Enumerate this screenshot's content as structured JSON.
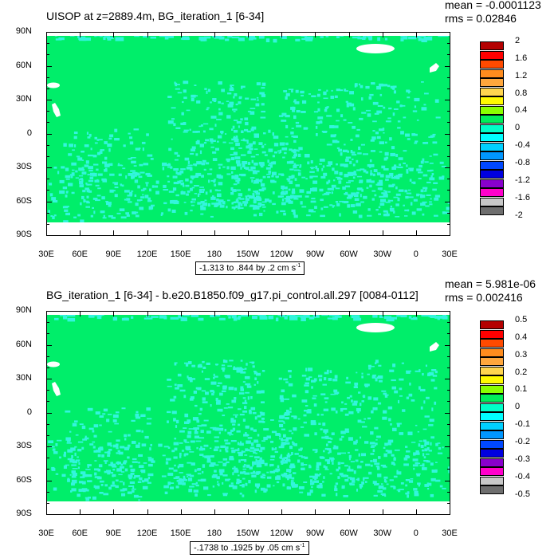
{
  "chart_data": [
    {
      "type": "heatmap",
      "title": "UISOP at z=2889.4m, BG_iteration_1 [6-34]",
      "mean_label": "mean = -0.0001123",
      "rms_label": "rms = 0.02846",
      "x_ticks": [
        "30E",
        "60E",
        "90E",
        "120E",
        "150E",
        "180",
        "150W",
        "120W",
        "90W",
        "60W",
        "30W",
        "0",
        "30E"
      ],
      "y_ticks": [
        "90N",
        "60N",
        "30N",
        "0",
        "30S",
        "60S",
        "90S"
      ],
      "legend_levels": [
        "2",
        "1.6",
        "1.2",
        "0.8",
        "0.4",
        "0",
        "-0.4",
        "-0.8",
        "-1.2",
        "-1.6",
        "-2"
      ],
      "legend_colors": [
        "#b40000",
        "#ff0000",
        "#ff4a00",
        "#ff8c1e",
        "#ffa73d",
        "#ffd54f",
        "#fffa00",
        "#8aff00",
        "#00ee5a",
        "#00ffc8",
        "#00ffff",
        "#00d0ff",
        "#0096ff",
        "#0048ff",
        "#0000e0",
        "#8800cc",
        "#ff00cc",
        "#c8c8c8",
        "#6e6e6e"
      ],
      "range_text": "-1.313 to .844 by .2 cm s",
      "range_unit_exp": "-1"
    },
    {
      "type": "heatmap",
      "title": "BG_iteration_1 [6-34] - b.e20.B1850.f09_g17.pi_control.all.297 [0084-0112]",
      "mean_label": "mean = 5.981e-06",
      "rms_label": "rms = 0.002416",
      "x_ticks": [
        "30E",
        "60E",
        "90E",
        "120E",
        "150E",
        "180",
        "150W",
        "120W",
        "90W",
        "60W",
        "30W",
        "0",
        "30E"
      ],
      "y_ticks": [
        "90N",
        "60N",
        "30N",
        "0",
        "30S",
        "60S",
        "90S"
      ],
      "legend_levels": [
        "0.5",
        "0.4",
        "0.3",
        "0.2",
        "0.1",
        "0",
        "-0.1",
        "-0.2",
        "-0.3",
        "-0.4",
        "-0.5"
      ],
      "legend_colors": [
        "#b40000",
        "#ff0000",
        "#ff4a00",
        "#ff8c1e",
        "#ffa73d",
        "#ffd54f",
        "#fffa00",
        "#8aff00",
        "#00ee5a",
        "#00ffc8",
        "#00ffff",
        "#00d0ff",
        "#0096ff",
        "#0048ff",
        "#0000e0",
        "#8800cc",
        "#ff00cc",
        "#c8c8c8",
        "#6e6e6e"
      ],
      "range_text": "-.1738 to .1925 by .05 cm s",
      "range_unit_exp": "-1"
    }
  ],
  "colors": {
    "field_main": "#00ee6a",
    "field_anomaly": "#33f5dd",
    "land_mask": "#ffffff"
  }
}
